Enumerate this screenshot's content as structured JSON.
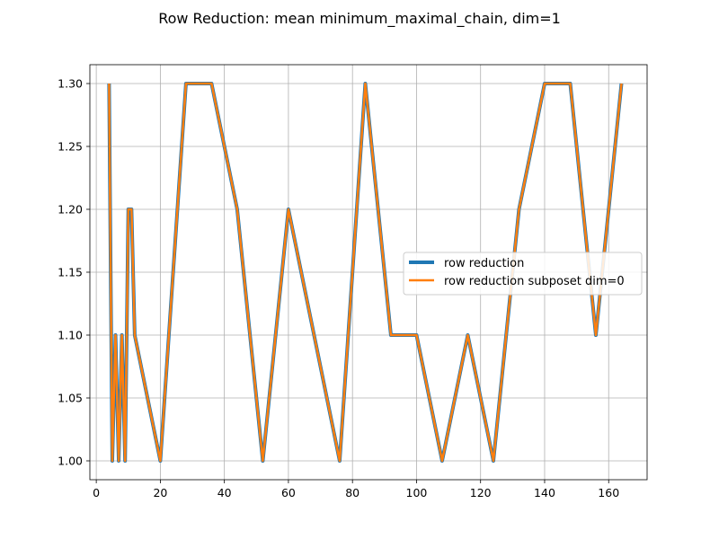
{
  "chart_data": {
    "type": "line",
    "title": "Row Reduction: mean minimum_maximal_chain, dim=1",
    "xlabel": "",
    "ylabel": "",
    "xlim": [
      -2.0,
      172.0
    ],
    "ylim": [
      0.985,
      1.315
    ],
    "xticks": [
      0,
      20,
      40,
      60,
      80,
      100,
      120,
      140,
      160
    ],
    "yticks": [
      1.0,
      1.05,
      1.1,
      1.15,
      1.2,
      1.25,
      1.3
    ],
    "ytick_labels": [
      "1.00",
      "1.05",
      "1.10",
      "1.15",
      "1.20",
      "1.25",
      "1.30"
    ],
    "grid": true,
    "legend_position": "center-right",
    "x": [
      4,
      5,
      6,
      7,
      8,
      9,
      10,
      11,
      12,
      20,
      28,
      36,
      44,
      52,
      60,
      68,
      76,
      84,
      92,
      100,
      108,
      116,
      124,
      132,
      140,
      148,
      156,
      164
    ],
    "series": [
      {
        "name": "row reduction",
        "color": "#1f77b4",
        "values": [
          1.3,
          1.0,
          1.1,
          1.0,
          1.1,
          1.0,
          1.2,
          1.2,
          1.1,
          1.0,
          1.3,
          1.3,
          1.2,
          1.0,
          1.2,
          1.1,
          1.0,
          1.3,
          1.1,
          1.1,
          1.0,
          1.1,
          1.0,
          1.2,
          1.3,
          1.3,
          1.1,
          1.3
        ]
      },
      {
        "name": "row reduction subposet dim=0",
        "color": "#ff7f0e",
        "values": [
          1.3,
          1.0,
          1.1,
          1.0,
          1.1,
          1.0,
          1.2,
          1.2,
          1.1,
          1.0,
          1.3,
          1.3,
          1.2,
          1.0,
          1.2,
          1.1,
          1.0,
          1.3,
          1.1,
          1.1,
          1.0,
          1.1,
          1.0,
          1.2,
          1.3,
          1.3,
          1.1,
          1.3
        ]
      }
    ]
  }
}
